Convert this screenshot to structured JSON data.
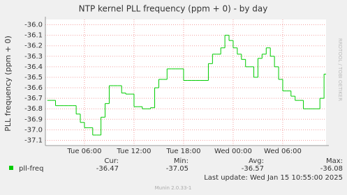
{
  "chart_data": {
    "type": "step",
    "title": "NTP kernel PLL frequency (ppm + 0) - by day",
    "y_label": "PLL frequency (ppm + 0)",
    "side_text": "RRDTOOL / TOBI OETIKER",
    "categories": [
      null,
      null,
      null,
      null,
      null,
      null,
      null,
      null,
      null,
      "Tue 06:00",
      null,
      null,
      null,
      null,
      null,
      null,
      null,
      null,
      null,
      null,
      null,
      "Tue 12:00",
      null,
      null,
      null,
      null,
      null,
      null,
      null,
      null,
      null,
      null,
      null,
      "Tue 18:00",
      null,
      null,
      null,
      null,
      null,
      null,
      null,
      null,
      null,
      null,
      null,
      "Wed 00:00",
      null,
      null,
      null,
      null,
      null,
      null,
      null,
      null,
      null,
      null,
      null,
      "Wed 06:00",
      null,
      null,
      null,
      null,
      null,
      null,
      null,
      null,
      null,
      null
    ],
    "series": [
      {
        "name": "pll-freq",
        "color": "#00cc00",
        "values": [
          -36.72,
          -36.72,
          -36.77,
          -36.77,
          -36.77,
          -36.77,
          -36.77,
          -36.85,
          -36.93,
          -36.98,
          -36.98,
          -37.05,
          -37.05,
          -36.88,
          -36.75,
          -36.58,
          -36.58,
          -36.58,
          -36.65,
          -36.66,
          -36.66,
          -36.78,
          -36.78,
          -36.8,
          -36.8,
          -36.79,
          -36.6,
          -36.52,
          -36.52,
          -36.42,
          -36.42,
          -36.42,
          -36.42,
          -36.53,
          -36.53,
          -36.53,
          -36.53,
          -36.53,
          -36.53,
          -36.37,
          -36.28,
          -36.28,
          -36.22,
          -36.1,
          -36.15,
          -36.22,
          -36.28,
          -36.33,
          -36.4,
          -36.4,
          -36.5,
          -36.32,
          -36.28,
          -36.22,
          -36.3,
          -36.4,
          -36.52,
          -36.63,
          -36.63,
          -36.68,
          -36.72,
          -36.72,
          -36.8,
          -36.8,
          -36.8,
          -36.8,
          -36.7,
          -36.47
        ]
      }
    ],
    "ylim": [
      -37.15,
      -35.95
    ],
    "yticks": [
      {
        "value": -36.0,
        "label": "-36.0"
      },
      -36.1,
      -36.2,
      -36.3,
      -36.4,
      -36.5,
      -36.6,
      -36.7,
      -36.8,
      -36.9,
      {
        "value": -37.0,
        "label": "-37.0"
      },
      -37.1
    ],
    "grid": true,
    "summary": {
      "headers": [
        "Cur:",
        "Min:",
        "Avg:",
        "Max:"
      ],
      "values": [
        -36.47,
        -37.05,
        -36.57,
        -36.08
      ]
    },
    "last_update": "Last update: Wed Jan 15 10:55:00 2025",
    "footer": "Munin 2.0.33-1"
  }
}
